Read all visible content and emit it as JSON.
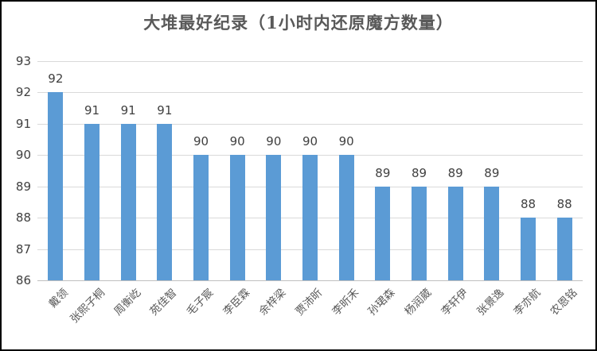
{
  "chart_data": {
    "type": "bar",
    "title": "大堆最好纪录（1小时内还原魔方数量）",
    "categories": [
      "戴领",
      "张熙子桐",
      "周衡屹",
      "苑佳智",
      "毛子宸",
      "李臣霖",
      "余梓梁",
      "贾沛昕",
      "李昕禾",
      "孙珺森",
      "杨润葳",
      "李轩伊",
      "张景逸",
      "李亦航",
      "农恩铭"
    ],
    "values": [
      92,
      91,
      91,
      91,
      90,
      90,
      90,
      90,
      90,
      89,
      89,
      89,
      89,
      88,
      88
    ],
    "data_labels": [
      "92",
      "91",
      "91",
      "91",
      "90",
      "90",
      "90",
      "90",
      "90",
      "89",
      "89",
      "89",
      "89",
      "88",
      "88"
    ],
    "xlabel": "",
    "ylabel": "",
    "ylim": [
      86,
      93
    ],
    "yticks": [
      86,
      87,
      88,
      89,
      90,
      91,
      92,
      93
    ],
    "grid": true,
    "legend": false,
    "colors": {
      "bar": "#5b9bd5",
      "gridline": "#d9d9d9",
      "axis_line": "#bfbfbf",
      "number_text": "#404040",
      "category_text": "#595959",
      "title_text": "#595959",
      "frame_border": "#000000"
    }
  }
}
